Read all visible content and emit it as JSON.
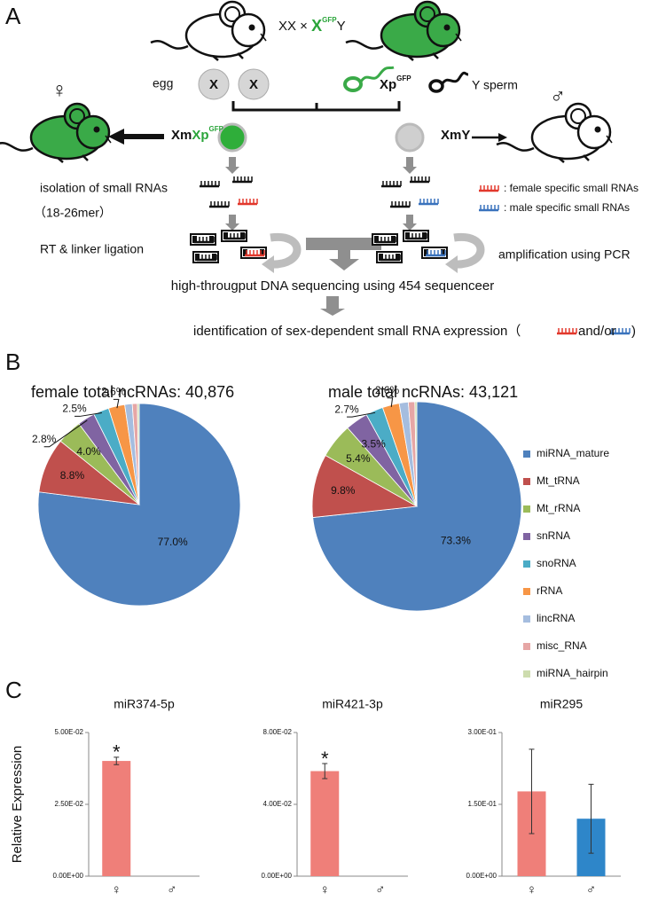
{
  "panel_a": {
    "label": "A",
    "cross": {
      "left": "XX × ",
      "x": "X",
      "gfp": "GFP",
      "y": "Y"
    },
    "egg": "egg",
    "egg_chromosomes": [
      "X",
      "X"
    ],
    "sperm_x": {
      "xp": "Xp",
      "gfp": "GFP"
    },
    "sperm_y": "Y sperm",
    "female_symbol": "♀",
    "male_symbol": "♂",
    "female_genotype": {
      "xm": "Xm",
      "xp": "Xp",
      "gfp": "GFP"
    },
    "male_genotype": "XmY",
    "steps": {
      "isolation": "isolation of small RNAs",
      "size": "（18-26mer）",
      "ligation": "RT & linker ligation",
      "amplification": "amplification using PCR",
      "sequencing": "high-througput DNA sequencing using 454 sequenceer",
      "identification": "identification of sex-dependent small RNA expression（",
      "and_or": "and/or",
      "close": ")"
    },
    "legend": [
      ": female specific small RNAs",
      ": male specific small RNAs"
    ]
  },
  "panel_b_label": "B",
  "panel_c_label": "C",
  "chart_data": [
    {
      "type": "pie",
      "title": "female total ncRNAs: 40,876",
      "categories": [
        "miRNA_mature",
        "Mt_tRNA",
        "Mt_rRNA",
        "snRNA",
        "snoRNA",
        "rRNA",
        "lincRNA",
        "misc_RNA",
        "miRNA_hairpin"
      ],
      "colors": [
        "#4f81bd",
        "#c0504d",
        "#9bbb59",
        "#8064a2",
        "#4bacc6",
        "#f79646",
        "#a5bddf",
        "#e6a6a5",
        "#cddcae"
      ],
      "values": [
        77.0,
        8.8,
        4.0,
        2.8,
        2.5,
        2.6,
        1.2,
        0.8,
        0.3
      ],
      "value_labels": [
        "77.0%",
        "8.8%",
        "4.0%",
        "2.8%",
        "2.5%",
        "2.6%",
        null,
        null,
        null
      ],
      "legend": "right"
    },
    {
      "type": "pie",
      "title": "male total ncRNAs: 43,121",
      "values": [
        73.3,
        9.8,
        5.4,
        3.5,
        2.7,
        2.6,
        1.4,
        1.0,
        0.3
      ],
      "value_labels": [
        "73.3%",
        "9.8%",
        "5.4%",
        "3.5%",
        "2.7%",
        "2.6%",
        null,
        null,
        null
      ]
    },
    {
      "type": "bar",
      "title": "miR374-5p",
      "ylabel": "Relative Expression",
      "categories": [
        "♀",
        "♂"
      ],
      "values": [
        0.0401,
        0
      ],
      "errors": [
        0.0013,
        null
      ],
      "colors": [
        "#ef7f79",
        "#2e86c9"
      ],
      "ylim": [
        0,
        0.05
      ],
      "yticks": [
        {
          "value": 0,
          "label": "0.00E+00"
        },
        {
          "value": 0.025,
          "label": "2.50E-02"
        },
        {
          "value": 0.05,
          "label": "5.00E-02"
        }
      ],
      "annotations": [
        {
          "text": "*",
          "x": "♀"
        }
      ]
    },
    {
      "type": "bar",
      "title": "miR421-3p",
      "categories": [
        "♀",
        "♂"
      ],
      "values": [
        0.0585,
        0
      ],
      "errors": [
        0.0042,
        null
      ],
      "colors": [
        "#ef7f79",
        "#2e86c9"
      ],
      "ylim": [
        0,
        0.08
      ],
      "yticks": [
        {
          "value": 0,
          "label": "0.00E+00"
        },
        {
          "value": 0.04,
          "label": "4.00E-02"
        },
        {
          "value": 0.08,
          "label": "8.00E-02"
        }
      ],
      "annotations": [
        {
          "text": "*",
          "x": "♀"
        }
      ]
    },
    {
      "type": "bar",
      "title": "miR295",
      "categories": [
        "♀",
        "♂"
      ],
      "values": [
        0.177,
        0.12
      ],
      "errors": [
        0.088,
        0.072
      ],
      "colors": [
        "#ef7f79",
        "#2e86c9"
      ],
      "ylim": [
        0,
        0.3
      ],
      "yticks": [
        {
          "value": 0,
          "label": "0.00E+00"
        },
        {
          "value": 0.15,
          "label": "1.50E-01"
        },
        {
          "value": 0.3,
          "label": "3.00E-01"
        }
      ]
    }
  ]
}
